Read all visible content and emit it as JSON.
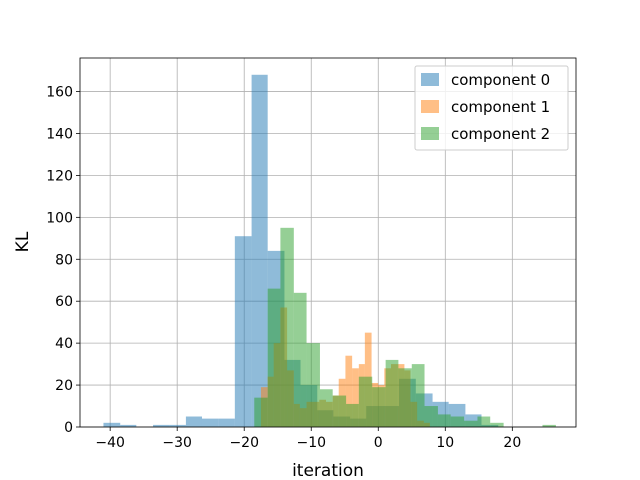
{
  "chart_data": {
    "type": "histogram",
    "xlabel": "iteration",
    "ylabel": "KL",
    "xlim": [
      -44.5,
      29.5
    ],
    "ylim": [
      0,
      176
    ],
    "xticks": [
      -40,
      -30,
      -20,
      -10,
      0,
      10,
      20
    ],
    "yticks": [
      0,
      20,
      40,
      60,
      80,
      100,
      120,
      140,
      160
    ],
    "grid": true,
    "legend_position": "top-right",
    "series": [
      {
        "name": "component 0",
        "color": "#1f77b4",
        "opacity": 0.5,
        "bin_edges": [
          -41,
          -38.5,
          -36.1,
          -33.6,
          -31.2,
          -28.7,
          -26.3,
          -23.8,
          -21.4,
          -18.9,
          -16.5,
          -14,
          -11.6,
          -9.1,
          -6.7,
          -4.2,
          -1.8,
          0.7,
          3.1,
          5.6,
          8.1,
          10.5,
          13,
          15.4,
          17.9
        ],
        "counts": [
          2,
          1,
          0,
          1,
          1,
          5,
          4,
          4,
          91,
          168,
          84,
          32,
          20,
          8,
          5,
          4,
          10,
          10,
          23,
          16,
          12,
          11,
          6,
          1
        ]
      },
      {
        "name": "component 1",
        "color": "#ff7f0e",
        "opacity": 0.5,
        "bin_edges": [
          -17.5,
          -16.5,
          -15.6,
          -14.6,
          -13.6,
          -12.6,
          -11.7,
          -10.7,
          -9.7,
          -8.8,
          -7.8,
          -6.8,
          -5.9,
          -4.9,
          -3.9,
          -2.9,
          -2,
          -1,
          0,
          0.9,
          1.9,
          2.9,
          3.9,
          4.8,
          5.8,
          6.8,
          7.7
        ],
        "counts": [
          19,
          24,
          40,
          57,
          27,
          11,
          9,
          12,
          12,
          13,
          12,
          15,
          23,
          34,
          28,
          30,
          45,
          21,
          20,
          28,
          30,
          30,
          27,
          12,
          3,
          2
        ]
      },
      {
        "name": "component 2",
        "color": "#2ca02c",
        "opacity": 0.5,
        "bin_edges": [
          -18.5,
          -16.5,
          -14.6,
          -12.6,
          -10.7,
          -8.7,
          -6.8,
          -4.8,
          -2.9,
          -0.9,
          1.1,
          3,
          5,
          6.9,
          8.9,
          10.8,
          12.8,
          14.8,
          16.7,
          18.7,
          20.6,
          22.6,
          24.5,
          26.5
        ],
        "counts": [
          14,
          66,
          95,
          64,
          40,
          18,
          15,
          11,
          24,
          19,
          32,
          28,
          30,
          10,
          6,
          5,
          3,
          5,
          2,
          0,
          0,
          0,
          1
        ]
      }
    ]
  }
}
